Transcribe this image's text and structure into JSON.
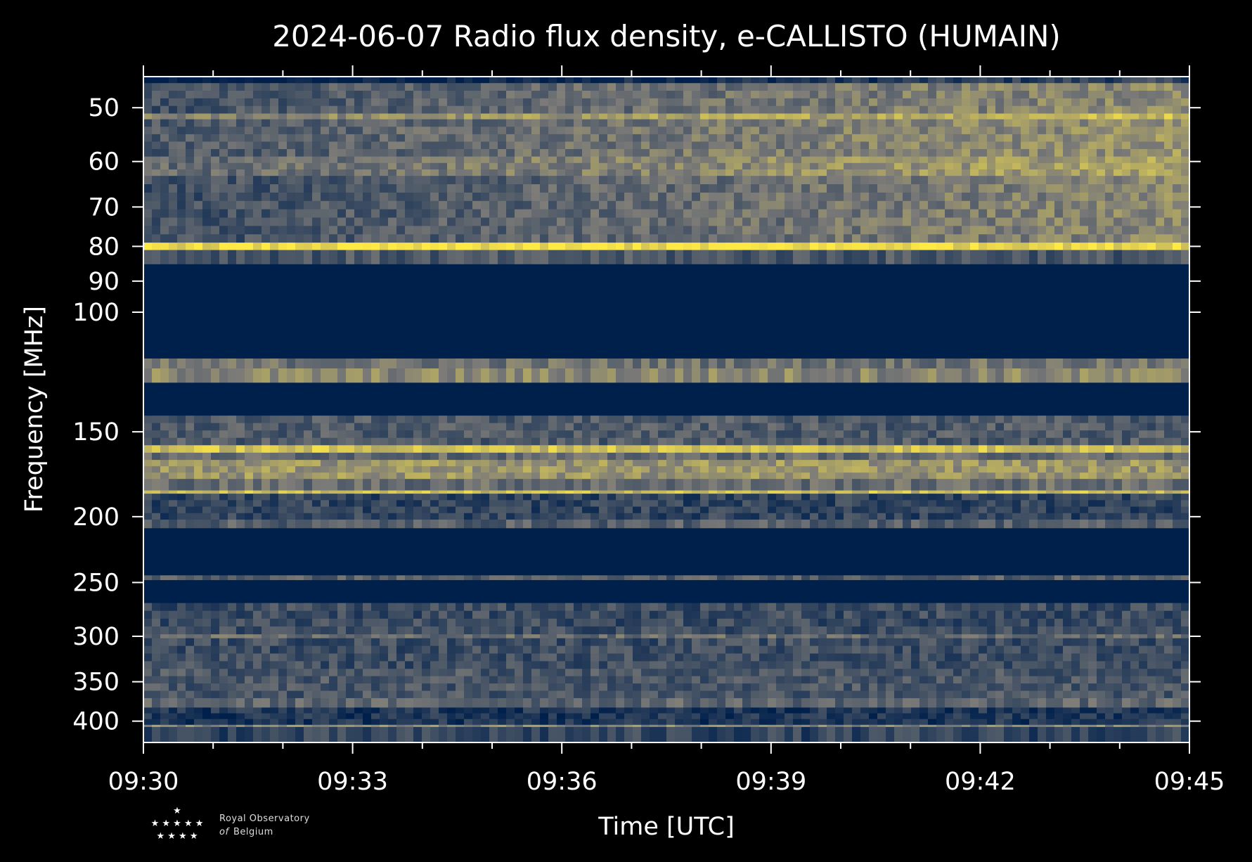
{
  "chart_data": {
    "type": "heatmap",
    "title": "2024-06-07 Radio flux density, e-CALLISTO (HUMAIN)",
    "xlabel": "Time [UTC]",
    "ylabel": "Frequency [MHz]",
    "x_ticks": [
      "09:30",
      "09:33",
      "09:36",
      "09:39",
      "09:42",
      "09:45"
    ],
    "x_range": [
      "09:30",
      "09:45"
    ],
    "y_scale": "log",
    "y_ticks": [
      50,
      60,
      70,
      80,
      90,
      100,
      150,
      200,
      250,
      300,
      350,
      400
    ],
    "y_range": [
      45,
      430
    ],
    "colormap": [
      "#00204c",
      "#7c7b78",
      "#ffe945"
    ],
    "grid": false,
    "legend": "none",
    "freq_bands": [
      {
        "from": 45,
        "to": 46,
        "level": 0.02
      },
      {
        "from": 46,
        "to": 51,
        "level": 0.38
      },
      {
        "from": 51,
        "to": 52,
        "level": 0.62
      },
      {
        "from": 52,
        "to": 59,
        "level": 0.42
      },
      {
        "from": 59,
        "to": 63,
        "level": 0.5
      },
      {
        "from": 63,
        "to": 79,
        "level": 0.36
      },
      {
        "from": 79,
        "to": 81,
        "level": 0.95
      },
      {
        "from": 81,
        "to": 85,
        "level": 0.3
      },
      {
        "from": 85,
        "to": 117,
        "level": 0.0
      },
      {
        "from": 117,
        "to": 121,
        "level": 0.45
      },
      {
        "from": 121,
        "to": 127,
        "level": 0.55
      },
      {
        "from": 127,
        "to": 142,
        "level": 0.0
      },
      {
        "from": 142,
        "to": 157,
        "level": 0.32
      },
      {
        "from": 157,
        "to": 161,
        "level": 0.82
      },
      {
        "from": 161,
        "to": 165,
        "level": 0.4
      },
      {
        "from": 165,
        "to": 176,
        "level": 0.62
      },
      {
        "from": 176,
        "to": 183,
        "level": 0.42
      },
      {
        "from": 183,
        "to": 185,
        "level": 0.8
      },
      {
        "from": 185,
        "to": 202,
        "level": 0.2
      },
      {
        "from": 202,
        "to": 208,
        "level": 0.35
      },
      {
        "from": 208,
        "to": 244,
        "level": 0.0
      },
      {
        "from": 244,
        "to": 248,
        "level": 0.35
      },
      {
        "from": 248,
        "to": 268,
        "level": 0.0
      },
      {
        "from": 268,
        "to": 298,
        "level": 0.24
      },
      {
        "from": 298,
        "to": 302,
        "level": 0.42
      },
      {
        "from": 302,
        "to": 335,
        "level": 0.25
      },
      {
        "from": 335,
        "to": 370,
        "level": 0.3
      },
      {
        "from": 370,
        "to": 382,
        "level": 0.38
      },
      {
        "from": 382,
        "to": 405,
        "level": 0.12
      },
      {
        "from": 405,
        "to": 408,
        "level": 0.55
      },
      {
        "from": 408,
        "to": 430,
        "level": 0.2
      }
    ]
  },
  "logo": {
    "line1": "Royal Observatory",
    "line2_prefix": "of",
    "line2": "Belgium"
  }
}
